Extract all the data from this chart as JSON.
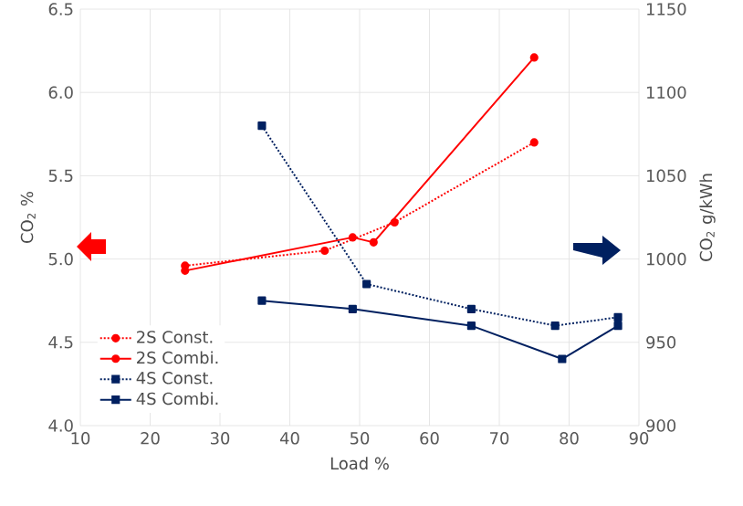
{
  "chart_data": {
    "type": "line",
    "xlabel": "Load %",
    "ylabel": "CO$_{2}$ %",
    "y2label": "CO$_{2}$ g/kWh",
    "xlim": [
      10,
      90
    ],
    "xticks": [
      10,
      20,
      30,
      40,
      50,
      60,
      70,
      80,
      90
    ],
    "ylim": [
      4.0,
      6.5
    ],
    "yticks": [
      {
        "value": 4.0,
        "label": "4.0"
      },
      {
        "value": 4.5,
        "label": "4.5"
      },
      {
        "value": 5.0,
        "label": "5.0"
      },
      {
        "value": 5.5,
        "label": "5.5"
      },
      {
        "value": 6.0,
        "label": "6.0"
      },
      {
        "value": 6.5,
        "label": "6.5"
      }
    ],
    "y2lim": [
      900,
      1150
    ],
    "y2ticks": [
      900,
      950,
      1000,
      1050,
      1100,
      1150
    ],
    "grid": true,
    "legend": "bottom left",
    "series": [
      {
        "name": "2S Const.",
        "color": "#ff0000",
        "x": [
          25,
          45,
          55,
          75
        ],
        "values": [
          4.96,
          5.05,
          5.22,
          5.7
        ],
        "line_style": "dotted",
        "marker": "circle"
      },
      {
        "name": "2S Combi.",
        "color": "#ff0000",
        "x": [
          25,
          49,
          52,
          75
        ],
        "values": [
          4.93,
          5.13,
          5.1,
          6.21
        ],
        "line_style": "solid",
        "marker": "circle"
      },
      {
        "name": "4S Const.",
        "color": "#002060",
        "x": [
          36,
          51,
          66,
          78,
          87
        ],
        "values": [
          1080,
          985,
          970,
          960,
          965
        ],
        "line_style": "dotted",
        "marker": "square",
        "axis": "y2"
      },
      {
        "name": "4S Combi.",
        "color": "#002060",
        "x": [
          36,
          49,
          66,
          79,
          87
        ],
        "values": [
          975,
          970,
          960,
          940,
          960
        ],
        "line_style": "solid",
        "marker": "square",
        "axis": "y2"
      }
    ]
  }
}
